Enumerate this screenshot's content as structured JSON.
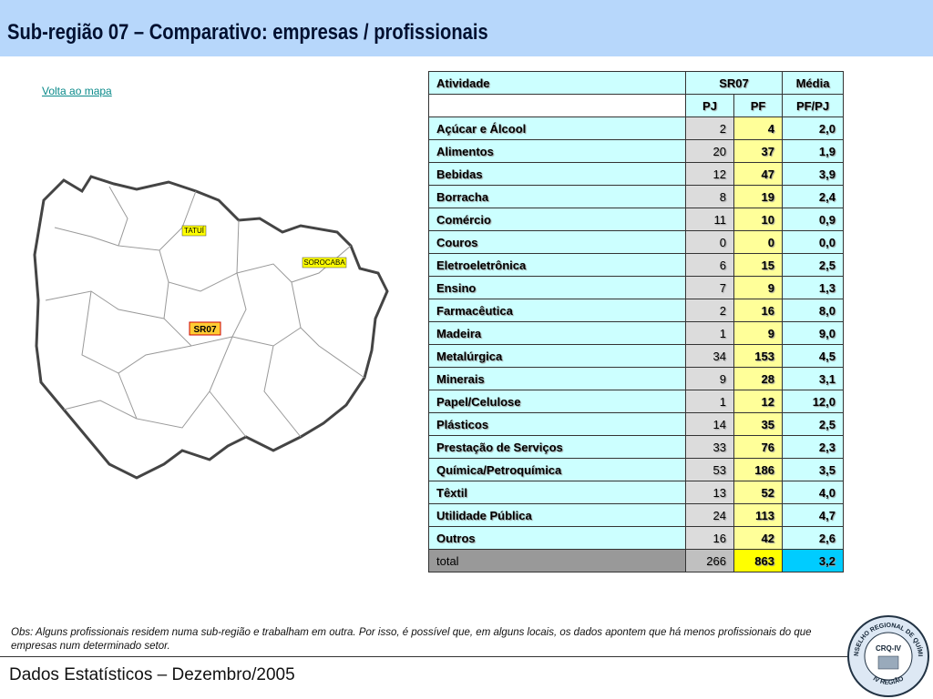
{
  "header": {
    "title": "Sub-região 07 – Comparativo: empresas / profissionais"
  },
  "link": "Volta ao mapa",
  "map": {
    "labels": [
      "TATUÍ",
      "SOROCABA",
      "SR07"
    ]
  },
  "table": {
    "header": [
      "Atividade",
      "SR07",
      "Média"
    ],
    "subheader": [
      "PJ",
      "PF",
      "PF/PJ"
    ],
    "rows": [
      [
        "Açúcar e Álcool",
        "2",
        "4",
        "2,0"
      ],
      [
        "Alimentos",
        "20",
        "37",
        "1,9"
      ],
      [
        "Bebidas",
        "12",
        "47",
        "3,9"
      ],
      [
        "Borracha",
        "8",
        "19",
        "2,4"
      ],
      [
        "Comércio",
        "11",
        "10",
        "0,9"
      ],
      [
        "Couros",
        "0",
        "0",
        "0,0"
      ],
      [
        "Eletroeletrônica",
        "6",
        "15",
        "2,5"
      ],
      [
        "Ensino",
        "7",
        "9",
        "1,3"
      ],
      [
        "Farmacêutica",
        "2",
        "16",
        "8,0"
      ],
      [
        "Madeira",
        "1",
        "9",
        "9,0"
      ],
      [
        "Metalúrgica",
        "34",
        "153",
        "4,5"
      ],
      [
        "Minerais",
        "9",
        "28",
        "3,1"
      ],
      [
        "Papel/Celulose",
        "1",
        "12",
        "12,0"
      ],
      [
        "Plásticos",
        "14",
        "35",
        "2,5"
      ],
      [
        "Prestação de Serviços",
        "33",
        "76",
        "2,3"
      ],
      [
        "Química/Petroquímica",
        "53",
        "186",
        "3,5"
      ],
      [
        "Têxtil",
        "13",
        "52",
        "4,0"
      ],
      [
        "Utilidade Pública",
        "24",
        "113",
        "4,7"
      ],
      [
        "Outros",
        "16",
        "42",
        "2,6"
      ]
    ],
    "total": [
      "total",
      "266",
      "863",
      "3,2"
    ]
  },
  "note": "Obs: Alguns profissionais residem numa sub-região e trabalham em outra. Por isso, é possível que, em alguns locais, os dados apontem que há menos profissionais do que empresas num determinado setor.",
  "footer": "Dados Estatísticos – Dezembro/2005",
  "logo": {
    "center": "CRQ-IV",
    "top": "CONSELHO REGIONAL DE QUÍMICA",
    "bottom": "IV REGIÃO"
  }
}
